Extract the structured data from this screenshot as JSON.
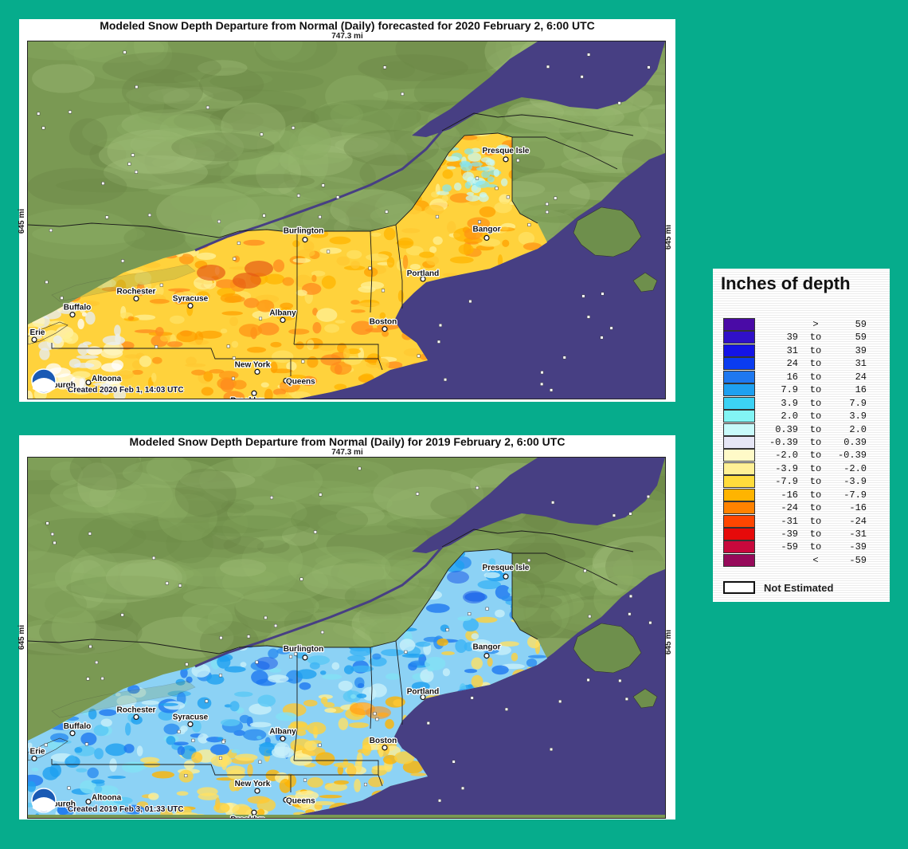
{
  "panels": [
    {
      "title": "Modeled Snow Depth Departure from Normal (Daily) forecasted for 2020 February 2, 6:00 UTC",
      "scale_top": "747.3 mi",
      "scale_side": "645 mi",
      "created": "Created 2020 Feb 1, 14:03 UTC",
      "scenario": "2020"
    },
    {
      "title": "Modeled Snow Depth Departure from Normal (Daily) for 2019 February 2, 6:00 UTC",
      "scale_top": "747.3 mi",
      "scale_side": "645 mi",
      "created": "Created 2019 Feb 3, 01:33 UTC",
      "scenario": "2019"
    }
  ],
  "cities": [
    "Presque Isle",
    "Bangor",
    "Burlington",
    "Portland",
    "Rochester",
    "Syracuse",
    "Buffalo",
    "Albany",
    "Boston",
    "Erie",
    "New York",
    "Queens",
    "Brooklyn",
    "Altoona",
    "sburgh"
  ],
  "legend": {
    "title": "Inches of depth",
    "rows": [
      {
        "color": "#4a0aa6",
        "from": "",
        "to_word": ">",
        "to": "59"
      },
      {
        "color": "#3010c8",
        "from": "39",
        "to_word": "to",
        "to": "59"
      },
      {
        "color": "#1414e6",
        "from": "31",
        "to_word": "to",
        "to": "39"
      },
      {
        "color": "#0a3cf0",
        "from": "24",
        "to_word": "to",
        "to": "31"
      },
      {
        "color": "#1e78f0",
        "from": "16",
        "to_word": "to",
        "to": "24"
      },
      {
        "color": "#1ea0f0",
        "from": "7.9",
        "to_word": "to",
        "to": "16"
      },
      {
        "color": "#3cd2f5",
        "from": "3.9",
        "to_word": "to",
        "to": "7.9"
      },
      {
        "color": "#82f5f5",
        "from": "2.0",
        "to_word": "to",
        "to": "3.9"
      },
      {
        "color": "#c8fafa",
        "from": "0.39",
        "to_word": "to",
        "to": "2.0"
      },
      {
        "color": "#e6e6f5",
        "from": "-0.39",
        "to_word": "to",
        "to": "0.39"
      },
      {
        "color": "#fffac8",
        "from": "-2.0",
        "to_word": "to",
        "to": "-0.39"
      },
      {
        "color": "#fff096",
        "from": "-3.9",
        "to_word": "to",
        "to": "-2.0"
      },
      {
        "color": "#ffdc3c",
        "from": "-7.9",
        "to_word": "to",
        "to": "-3.9"
      },
      {
        "color": "#ffb400",
        "from": "-16",
        "to_word": "to",
        "to": "-7.9"
      },
      {
        "color": "#ff8200",
        "from": "-24",
        "to_word": "to",
        "to": "-16"
      },
      {
        "color": "#ff4600",
        "from": "-31",
        "to_word": "to",
        "to": "-24"
      },
      {
        "color": "#e60a0a",
        "from": "-39",
        "to_word": "to",
        "to": "-31"
      },
      {
        "color": "#c8083c",
        "from": "-59",
        "to_word": "to",
        "to": "-39"
      },
      {
        "color": "#960a5a",
        "from": "",
        "to_word": "<",
        "to": "-59"
      }
    ],
    "not_estimated": "Not Estimated"
  },
  "colors": {
    "background": "#06ac8c",
    "ocean": "#473f83",
    "land_green": "#7c9a55"
  }
}
